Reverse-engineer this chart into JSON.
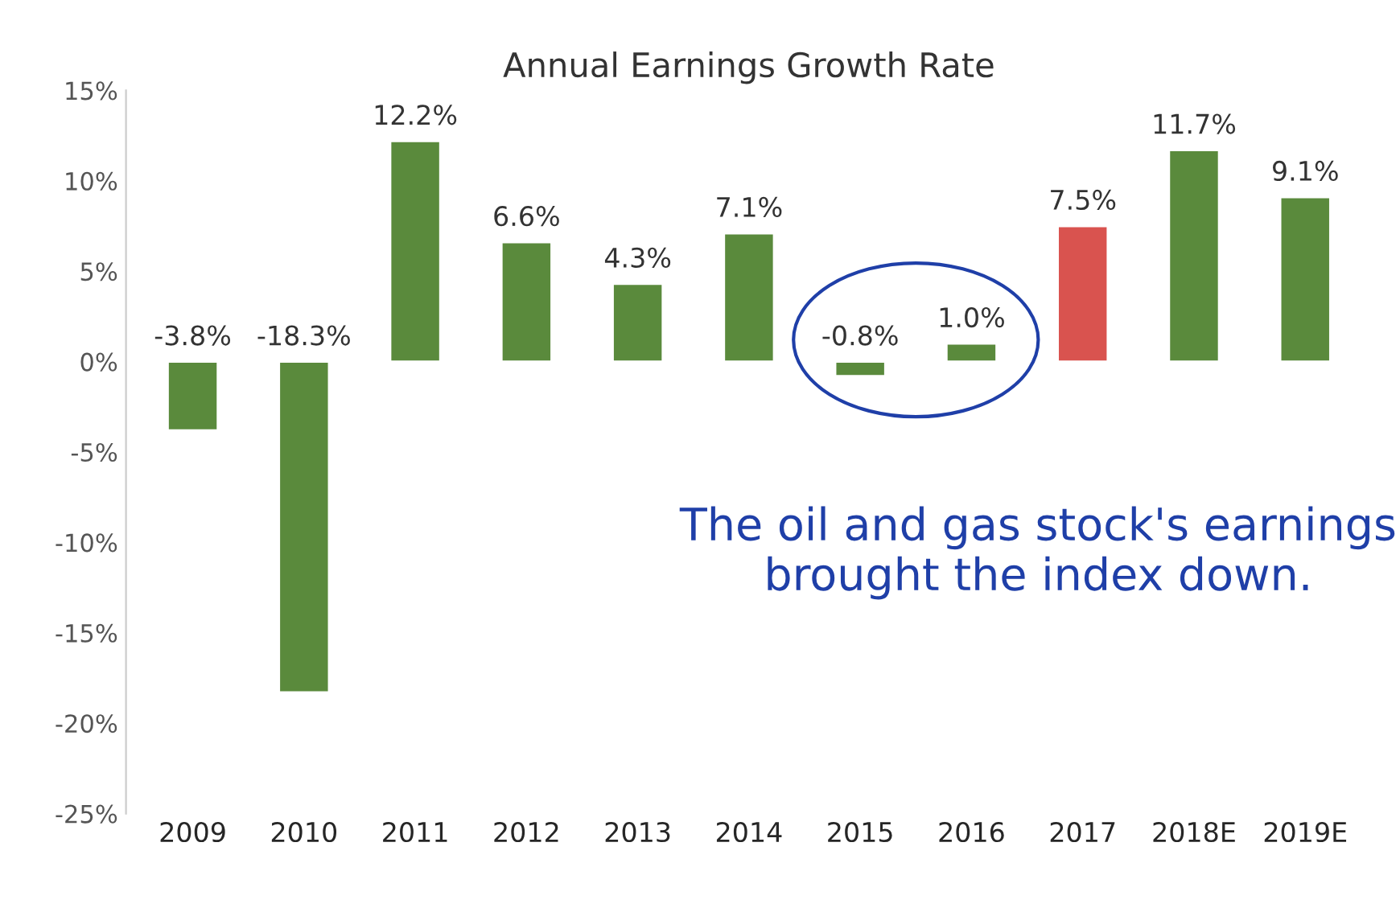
{
  "chart_data": {
    "type": "bar",
    "title": "Annual Earnings Growth Rate",
    "categories": [
      "2009",
      "2010",
      "2011",
      "2012",
      "2013",
      "2014",
      "2015",
      "2016",
      "2017",
      "2018E",
      "2019E"
    ],
    "values": [
      -3.8,
      -18.3,
      12.2,
      6.6,
      4.3,
      7.1,
      -0.8,
      1.0,
      7.5,
      11.7,
      9.1
    ],
    "colors": [
      "#5a8a3c",
      "#5a8a3c",
      "#5a8a3c",
      "#5a8a3c",
      "#5a8a3c",
      "#5a8a3c",
      "#5a8a3c",
      "#5a8a3c",
      "#d9534f",
      "#5a8a3c",
      "#5a8a3c"
    ],
    "value_labels": [
      "-3.8%",
      "-18.3%",
      "12.2%",
      "6.6%",
      "4.3%",
      "7.1%",
      "-0.8%",
      "1.0%",
      "7.5%",
      "11.7%",
      "9.1%"
    ],
    "ylim": [
      -25,
      15
    ],
    "yticks": [
      {
        "value": -25,
        "label": "-25%"
      },
      {
        "value": -20,
        "label": "-20%"
      },
      {
        "value": -15,
        "label": "-15%"
      },
      {
        "value": -10,
        "label": "-10%"
      },
      {
        "value": -5,
        "label": "-5%"
      },
      {
        "value": 0,
        "label": "0%"
      },
      {
        "value": 5,
        "label": "5%"
      },
      {
        "value": 10,
        "label": "10%"
      },
      {
        "value": 15,
        "label": "15%"
      }
    ],
    "grid": false,
    "legend": false,
    "annotations": [
      "The oil and gas stock's earnings brought the index down."
    ]
  }
}
